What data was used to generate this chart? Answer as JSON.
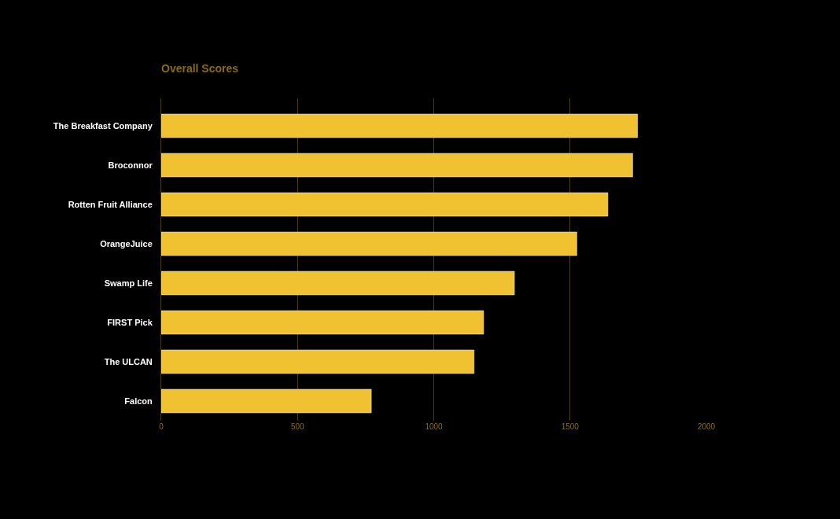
{
  "chart_data": {
    "type": "bar",
    "orientation": "horizontal",
    "title": "Overall Scores",
    "categories": [
      "The Breakfast Company",
      "Broconnor",
      "Rotten Fruit Alliance",
      "OrangeJuice",
      "Swamp Life",
      "FIRST Pick",
      "The ULCAN",
      "Falcon"
    ],
    "series": [
      {
        "color": "#f0c232",
        "values": [
          1748,
          1730,
          1639,
          1525,
          1296,
          1183,
          1148,
          771
        ]
      }
    ],
    "xlim": [
      0,
      2000
    ],
    "xticks": [
      0,
      500,
      1000,
      1500,
      2000
    ],
    "grid": "x"
  }
}
